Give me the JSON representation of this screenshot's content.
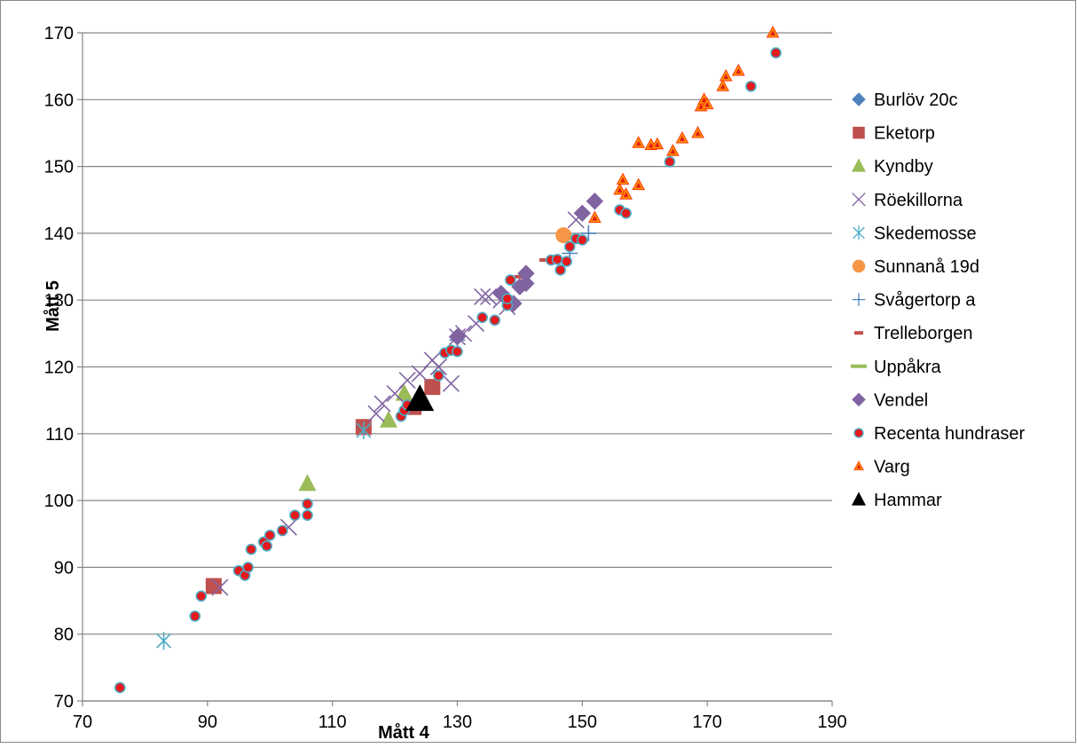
{
  "chart_data": {
    "type": "scatter",
    "xlabel": "Mått 4",
    "ylabel": "Mått 5",
    "xlim": [
      70,
      190
    ],
    "ylim": [
      70,
      170
    ],
    "x_ticks": [
      70,
      90,
      110,
      130,
      150,
      170,
      190
    ],
    "y_ticks": [
      70,
      80,
      90,
      100,
      110,
      120,
      130,
      140,
      150,
      160,
      170
    ],
    "grid": "horizontal",
    "legend_position": "right",
    "series": [
      {
        "name": "Burlöv 20c",
        "marker": "diamond",
        "color": "#4f81bd",
        "points": []
      },
      {
        "name": "Eketorp",
        "marker": "square",
        "color": "#c0504d",
        "points": [
          [
            91,
            87.2
          ],
          [
            115,
            111
          ],
          [
            123,
            114
          ],
          [
            126,
            117
          ]
        ]
      },
      {
        "name": "Kyndby",
        "marker": "triangle",
        "color": "#9bbb59",
        "points": [
          [
            106,
            102.5
          ],
          [
            119,
            112
          ],
          [
            121.5,
            116
          ]
        ]
      },
      {
        "name": "Röekillorna",
        "marker": "x",
        "color": "#8064a2",
        "points": [
          [
            92,
            87
          ],
          [
            103,
            96
          ],
          [
            117,
            113
          ],
          [
            118,
            114.5
          ],
          [
            120,
            116
          ],
          [
            122,
            118
          ],
          [
            124,
            119
          ],
          [
            126,
            121
          ],
          [
            127,
            120
          ],
          [
            129,
            117.5
          ],
          [
            130,
            124.5
          ],
          [
            131,
            125
          ],
          [
            133,
            126.5
          ],
          [
            134,
            130.5
          ],
          [
            135,
            130.5
          ],
          [
            137,
            130
          ],
          [
            138,
            129
          ],
          [
            149,
            142
          ]
        ]
      },
      {
        "name": "Skedemosse",
        "marker": "star",
        "color": "#4bacc6",
        "points": [
          [
            83,
            79
          ],
          [
            115,
            110.5
          ]
        ]
      },
      {
        "name": "Sunnanå 19d",
        "marker": "circle",
        "color": "#f79646",
        "points": [
          [
            147,
            139.7
          ]
        ]
      },
      {
        "name": "Svågertorp a",
        "marker": "plus",
        "color": "#4f81bd",
        "points": [
          [
            130,
            124
          ],
          [
            151,
            140
          ],
          [
            148,
            137
          ]
        ]
      },
      {
        "name": "Trelleborgen",
        "marker": "dash",
        "color": "#c0504d",
        "points": [
          [
            140,
            133.5
          ],
          [
            144,
            136
          ]
        ]
      },
      {
        "name": "Uppåkra",
        "marker": "dash",
        "color": "#9bbb59",
        "points": []
      },
      {
        "name": "Vendel",
        "marker": "diamond",
        "color": "#8064a2",
        "points": [
          [
            130,
            124.5
          ],
          [
            137,
            131
          ],
          [
            139,
            129.5
          ],
          [
            140,
            132
          ],
          [
            141,
            134
          ],
          [
            141,
            132.5
          ],
          [
            150,
            143
          ],
          [
            152,
            144.8
          ]
        ]
      },
      {
        "name": "Recenta hundraser",
        "marker": "dot",
        "color": "#e41a1c",
        "points": [
          [
            76,
            72
          ],
          [
            88,
            82.7
          ],
          [
            89,
            85.7
          ],
          [
            95,
            89.5
          ],
          [
            96,
            88.8
          ],
          [
            96.5,
            90
          ],
          [
            97,
            92.7
          ],
          [
            99,
            93.8
          ],
          [
            99.5,
            93.2
          ],
          [
            100,
            94.8
          ],
          [
            102,
            95.5
          ],
          [
            104,
            97.8
          ],
          [
            106,
            99.5
          ],
          [
            106,
            97.8
          ],
          [
            121,
            112.6
          ],
          [
            121.5,
            113.5
          ],
          [
            122,
            114.3
          ],
          [
            127,
            118.7
          ],
          [
            128,
            122.1
          ],
          [
            129,
            122.5
          ],
          [
            130,
            122.3
          ],
          [
            134,
            127.4
          ],
          [
            136,
            127
          ],
          [
            138,
            129.2
          ],
          [
            138,
            130.2
          ],
          [
            138.5,
            133
          ],
          [
            145,
            136
          ],
          [
            146,
            136.1
          ],
          [
            146.5,
            134.5
          ],
          [
            147.5,
            135.8
          ],
          [
            148,
            138
          ],
          [
            149,
            139.2
          ],
          [
            150,
            139
          ],
          [
            156,
            143.5
          ],
          [
            157,
            143
          ],
          [
            164,
            150.7
          ],
          [
            177,
            162
          ],
          [
            181,
            167
          ]
        ]
      },
      {
        "name": "Varg",
        "marker": "triangle-small",
        "color": "#ff6600",
        "points": [
          [
            152,
            142.3
          ],
          [
            156,
            146.5
          ],
          [
            156.5,
            148
          ],
          [
            157,
            145.8
          ],
          [
            159,
            147.2
          ],
          [
            159,
            153.5
          ],
          [
            161,
            153.2
          ],
          [
            162,
            153.3
          ],
          [
            164.5,
            152.3
          ],
          [
            166,
            154.2
          ],
          [
            168.5,
            155
          ],
          [
            169,
            159
          ],
          [
            169.5,
            160
          ],
          [
            170,
            159.3
          ],
          [
            172.5,
            162
          ],
          [
            173,
            163.5
          ],
          [
            175,
            164.3
          ],
          [
            180.5,
            170
          ]
        ]
      },
      {
        "name": "Hammar",
        "marker": "triangle-large",
        "color": "#000000",
        "points": [
          [
            124,
            115
          ]
        ]
      }
    ]
  }
}
